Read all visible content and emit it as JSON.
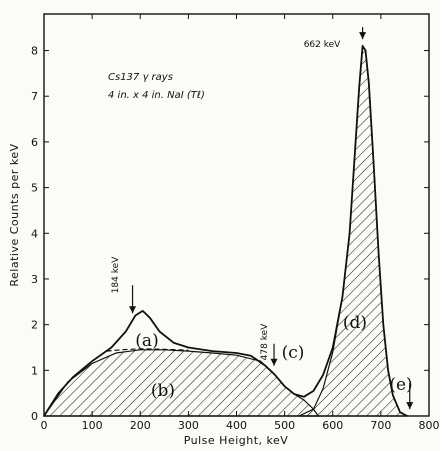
{
  "chart_data": {
    "type": "line",
    "title": "",
    "xlabel": "Pulse Height, keV",
    "ylabel": "Relative Counts per keV",
    "xlim": [
      0,
      800
    ],
    "ylim": [
      0,
      8.8
    ],
    "x_ticks": [
      "0",
      "100",
      "200",
      "300",
      "400",
      "500",
      "600",
      "700",
      "800"
    ],
    "y_ticks": [
      "0",
      "1",
      "2",
      "3",
      "4",
      "5",
      "6",
      "7",
      "8"
    ],
    "grid": false,
    "legend": "none",
    "inset_text": [
      "Cs137 γ rays",
      "4 in. x 4 in. NaI (Tℓ)"
    ],
    "annotations": {
      "peak_662": "662 keV",
      "peak_184": "184 keV",
      "edge_478": "478 keV"
    },
    "region_labels": [
      "(a)",
      "(b)",
      "(c)",
      "(d)",
      "(e)"
    ],
    "series": [
      {
        "name": "",
        "x": [
          0,
          30,
          60,
          100,
          140,
          170,
          190,
          205,
          220,
          240,
          270,
          300,
          350,
          400,
          430,
          460,
          480,
          500,
          520,
          540,
          560,
          580,
          600,
          620,
          635,
          645,
          655,
          662,
          668,
          675,
          685,
          695,
          705,
          715,
          725,
          740,
          755
        ],
        "y": [
          0.0,
          0.5,
          0.85,
          1.2,
          1.5,
          1.85,
          2.2,
          2.3,
          2.15,
          1.85,
          1.6,
          1.5,
          1.42,
          1.38,
          1.32,
          1.1,
          0.9,
          0.65,
          0.48,
          0.42,
          0.55,
          0.9,
          1.5,
          2.6,
          4.0,
          5.6,
          7.2,
          8.1,
          8.0,
          7.3,
          5.5,
          3.6,
          2.0,
          1.0,
          0.45,
          0.08,
          0.0
        ]
      }
    ],
    "hatched_regions": [
      {
        "label": "(b)",
        "x": [
          0,
          50,
          100,
          150,
          200,
          250,
          300,
          350,
          400,
          450,
          480,
          500,
          520,
          540,
          560,
          570
        ],
        "y": [
          0.0,
          0.75,
          1.15,
          1.38,
          1.45,
          1.45,
          1.42,
          1.38,
          1.33,
          1.2,
          0.9,
          0.65,
          0.48,
          0.35,
          0.15,
          0.0
        ]
      },
      {
        "label": "(d)",
        "x": [
          530,
          560,
          580,
          600,
          620,
          635,
          645,
          655,
          662,
          668,
          675,
          685,
          695,
          705,
          715,
          725,
          740,
          755
        ],
        "y": [
          0.0,
          0.15,
          0.6,
          1.4,
          2.6,
          4.0,
          5.6,
          7.2,
          8.1,
          8.0,
          7.3,
          5.5,
          3.6,
          2.0,
          1.0,
          0.45,
          0.08,
          0.0
        ]
      }
    ],
    "compton_edge_dashed": {
      "x": [
        130,
        160,
        200,
        250,
        300
      ],
      "y": [
        1.42,
        1.45,
        1.47,
        1.46,
        1.44
      ]
    },
    "arrows": [
      {
        "label": "peak_662",
        "x": 662,
        "y": 8.1
      },
      {
        "label": "peak_184",
        "x": 184,
        "y": 2.2
      },
      {
        "label": "edge_478",
        "x": 478,
        "y": 1.0
      },
      {
        "label": "(e)",
        "x": 760,
        "y": 0.0
      }
    ]
  }
}
